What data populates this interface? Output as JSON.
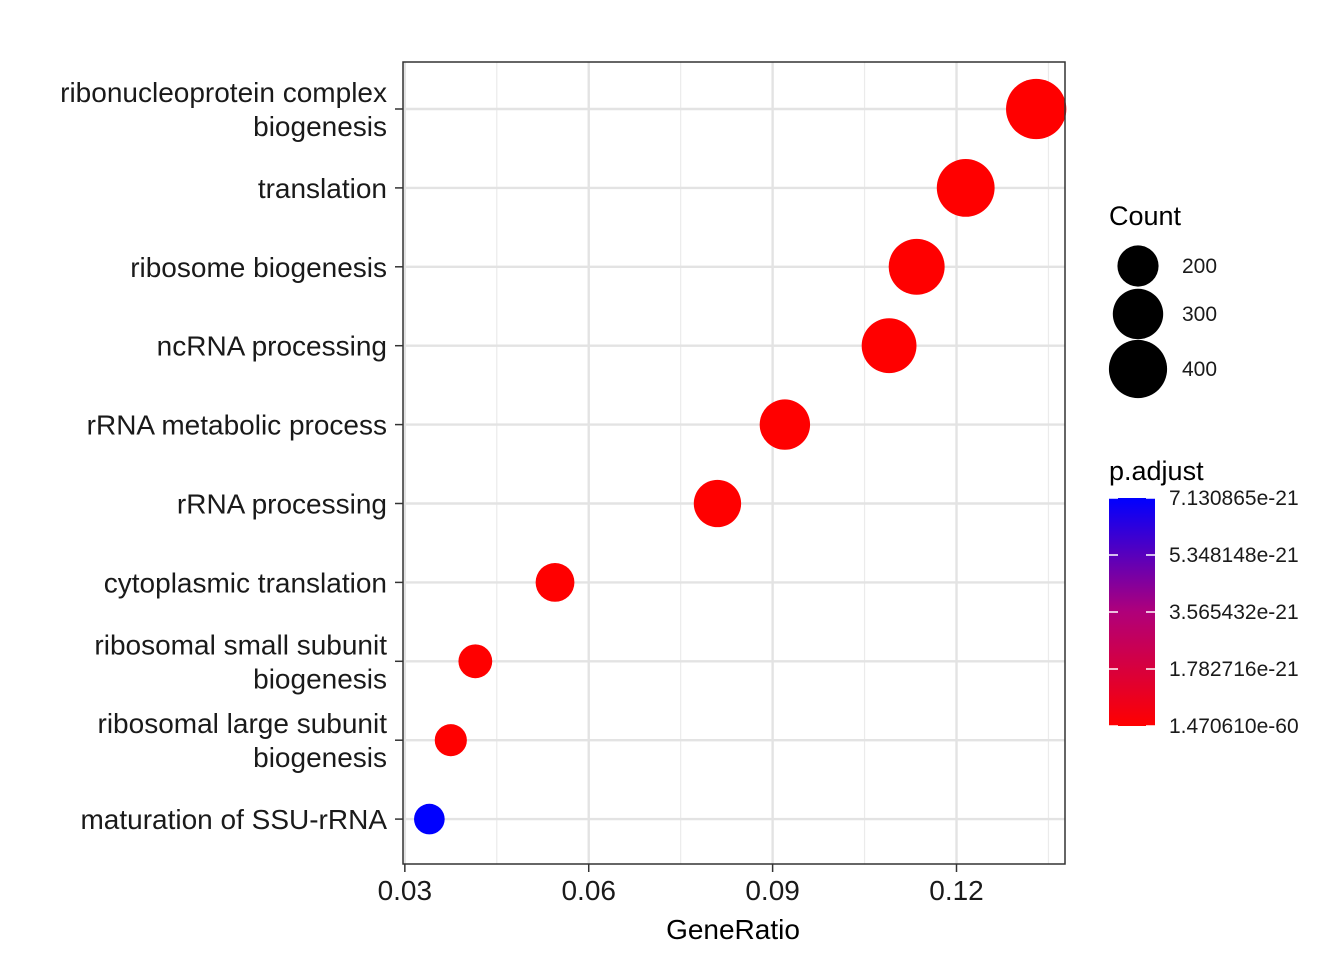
{
  "chart_data": {
    "type": "scatter",
    "xlabel": "GeneRatio",
    "xticks": [
      0.03,
      0.06,
      0.09,
      0.12
    ],
    "xtick_labels": [
      "0.03",
      "0.06",
      "0.09",
      "0.12"
    ],
    "xlim": [
      0.0297,
      0.1377
    ],
    "grid": true,
    "points": [
      {
        "term": "ribonucleoprotein complex biogenesis",
        "label_lines": [
          "ribonucleoprotein complex",
          "biogenesis"
        ],
        "gene_ratio": 0.133,
        "count": 430,
        "p_adjust": 1.47061e-60
      },
      {
        "term": "translation",
        "label_lines": [
          "translation"
        ],
        "gene_ratio": 0.1215,
        "count": 395,
        "p_adjust": 1.47061e-60
      },
      {
        "term": "ribosome biogenesis",
        "label_lines": [
          "ribosome biogenesis"
        ],
        "gene_ratio": 0.1135,
        "count": 370,
        "p_adjust": 1.47061e-60
      },
      {
        "term": "ncRNA processing",
        "label_lines": [
          "ncRNA processing"
        ],
        "gene_ratio": 0.109,
        "count": 355,
        "p_adjust": 1.47061e-60
      },
      {
        "term": "rRNA metabolic process",
        "label_lines": [
          "rRNA metabolic process"
        ],
        "gene_ratio": 0.092,
        "count": 300,
        "p_adjust": 1.47061e-60
      },
      {
        "term": "rRNA processing",
        "label_lines": [
          "rRNA processing"
        ],
        "gene_ratio": 0.081,
        "count": 265,
        "p_adjust": 1.47061e-60
      },
      {
        "term": "cytoplasmic translation",
        "label_lines": [
          "cytoplasmic translation"
        ],
        "gene_ratio": 0.0545,
        "count": 178,
        "p_adjust": 1.47061e-60
      },
      {
        "term": "ribosomal small subunit biogenesis",
        "label_lines": [
          "ribosomal small subunit",
          "biogenesis"
        ],
        "gene_ratio": 0.0415,
        "count": 135,
        "p_adjust": 1.47061e-60
      },
      {
        "term": "ribosomal large subunit biogenesis",
        "label_lines": [
          "ribosomal large subunit",
          "biogenesis"
        ],
        "gene_ratio": 0.0375,
        "count": 122,
        "p_adjust": 1.47061e-60
      },
      {
        "term": "maturation of SSU-rRNA",
        "label_lines": [
          "maturation of SSU-rRNA"
        ],
        "gene_ratio": 0.034,
        "count": 111,
        "p_adjust": 7.130865e-21
      }
    ],
    "size_legend": {
      "title": "Count",
      "breaks": [
        200,
        300,
        400
      ],
      "labels": [
        "200",
        "300",
        "400"
      ]
    },
    "color_legend": {
      "title": "p.adjust",
      "labels": [
        "7.130865e-21",
        "5.348148e-21",
        "3.565432e-21",
        "1.782716e-21",
        "1.470610e-60"
      ],
      "values": [
        7.130865e-21,
        5.348148e-21,
        3.565432e-21,
        1.782716e-21,
        1.47061e-60
      ],
      "high_color": "#0000ff",
      "low_color": "#ff0000"
    }
  }
}
